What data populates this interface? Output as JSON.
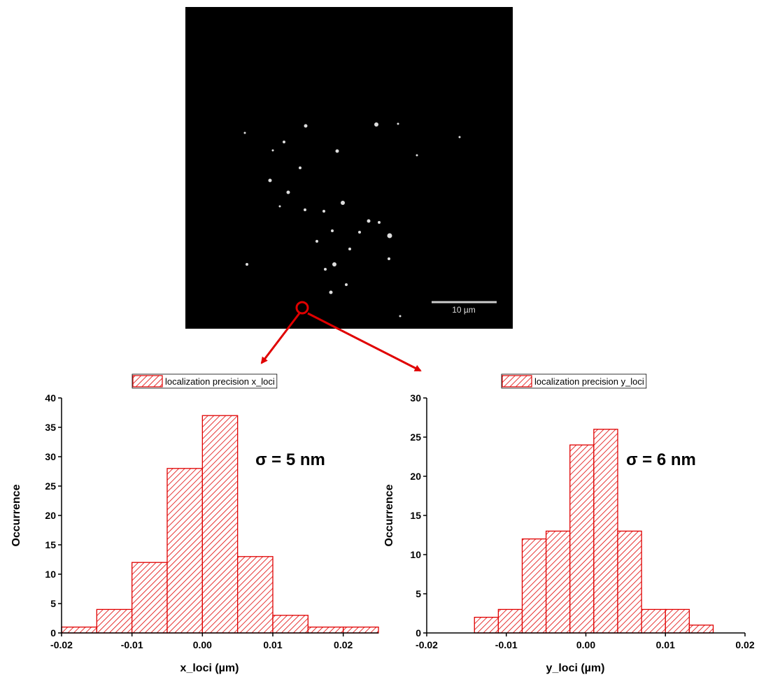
{
  "image": {
    "scale_bar": "10 µm"
  },
  "chart_data": [
    {
      "type": "histogram",
      "xlabel": "x_loci (µm)",
      "ylabel": "Occurrence",
      "annotation": "σ = 5 nm",
      "bins": [
        -0.02,
        -0.015,
        -0.01,
        -0.005,
        0,
        0.005,
        0.01,
        0.015,
        0.02,
        0.025
      ],
      "series": [
        {
          "name": "localization precision x_loci",
          "color": "#e00000",
          "values": [
            1,
            4,
            12,
            28,
            37,
            13,
            3,
            1,
            1
          ]
        }
      ],
      "xlim": [
        -0.02,
        0.025
      ],
      "ylim": [
        0,
        40
      ],
      "xticks": [
        -0.02,
        -0.01,
        {
          "value": 0,
          "label": "0.00"
        },
        0.01,
        0.02
      ],
      "yticks": [
        0,
        5,
        10,
        15,
        20,
        25,
        30,
        35,
        40
      ]
    },
    {
      "type": "histogram",
      "xlabel": "y_loci (µm)",
      "ylabel": "Occurrence",
      "annotation": "σ = 6 nm",
      "bins": [
        -0.014,
        -0.011,
        -0.008,
        -0.005,
        -0.002,
        0.001,
        0.004,
        0.007,
        0.01,
        0.013,
        0.016
      ],
      "series": [
        {
          "name": "localization precision y_loci",
          "color": "#e00000",
          "values": [
            2,
            3,
            12,
            13,
            24,
            26,
            13,
            3,
            3,
            1
          ]
        }
      ],
      "xlim": [
        -0.02,
        0.02
      ],
      "ylim": [
        0,
        30
      ],
      "xticks": [
        -0.02,
        -0.01,
        {
          "value": 0,
          "label": "0.00"
        },
        0.01,
        0.02
      ],
      "yticks": [
        0,
        5,
        10,
        15,
        20,
        25,
        30
      ]
    }
  ]
}
